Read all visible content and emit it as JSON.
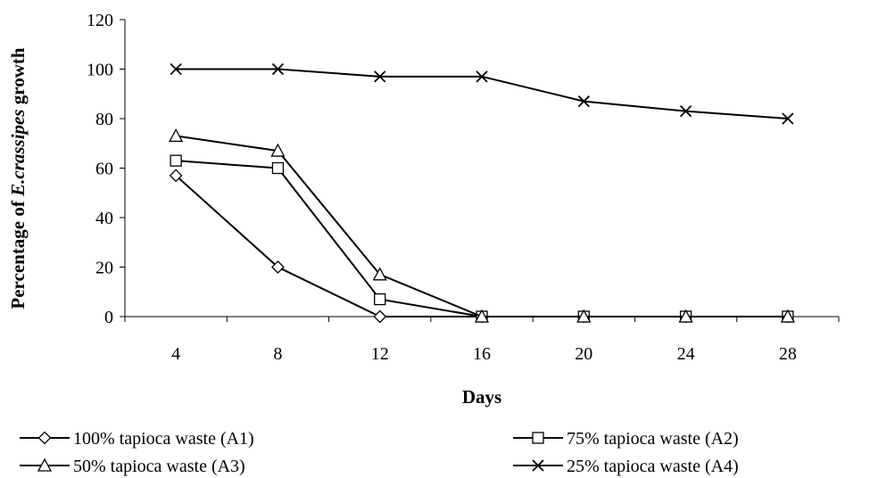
{
  "chart_data": {
    "type": "line",
    "xlabel": "Days",
    "ylabel_prefix": "Percentage of ",
    "ylabel_italic": "E.crassipes",
    "ylabel_suffix": " growth",
    "x": [
      4,
      8,
      12,
      16,
      20,
      24,
      28
    ],
    "ylim": [
      0,
      120
    ],
    "yticks": [
      0,
      20,
      40,
      60,
      80,
      100,
      120
    ],
    "grid": false,
    "legend_position": "bottom",
    "line_color": "#000000",
    "series": [
      {
        "name": "100%  tapioca waste (A1)",
        "marker": "diamond",
        "values": [
          57,
          20,
          0,
          0,
          0,
          0,
          0
        ]
      },
      {
        "name": "75% tapioca waste (A2)",
        "marker": "square",
        "values": [
          63,
          60,
          7,
          0,
          0,
          0,
          0
        ]
      },
      {
        "name": "50% tapioca waste (A3)",
        "marker": "triangle",
        "values": [
          73,
          67,
          17,
          0,
          0,
          0,
          0
        ]
      },
      {
        "name": "25% tapioca waste (A4)",
        "marker": "x",
        "values": [
          100,
          100,
          97,
          97,
          87,
          83,
          80
        ]
      }
    ]
  }
}
